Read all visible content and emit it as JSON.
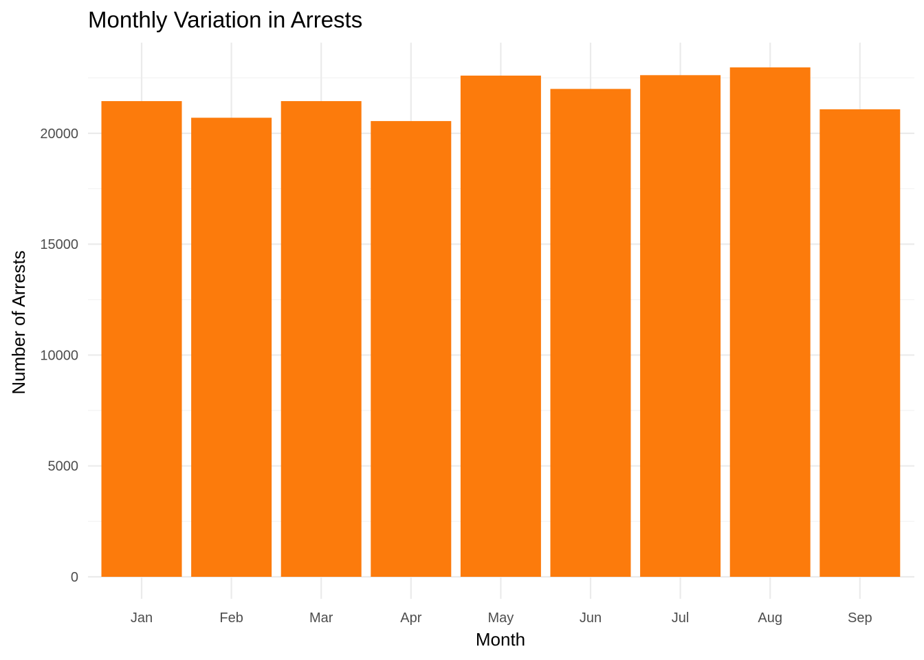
{
  "chart_data": {
    "type": "bar",
    "title": "Monthly Variation in Arrests",
    "xlabel": "Month",
    "ylabel": "Number of Arrests",
    "categories": [
      "Jan",
      "Feb",
      "Mar",
      "Apr",
      "May",
      "Jun",
      "Jul",
      "Aug",
      "Sep"
    ],
    "values": [
      21450,
      20700,
      21450,
      20550,
      22600,
      22000,
      22620,
      22970,
      21080
    ],
    "ylim": [
      0,
      23000
    ],
    "yticks": [
      0,
      5000,
      10000,
      15000,
      20000
    ],
    "grid": true,
    "legend": "none",
    "bar_color": "#FC7B0C",
    "background_color": "#FFFFFF",
    "grid_color": "#EBEBEB"
  }
}
